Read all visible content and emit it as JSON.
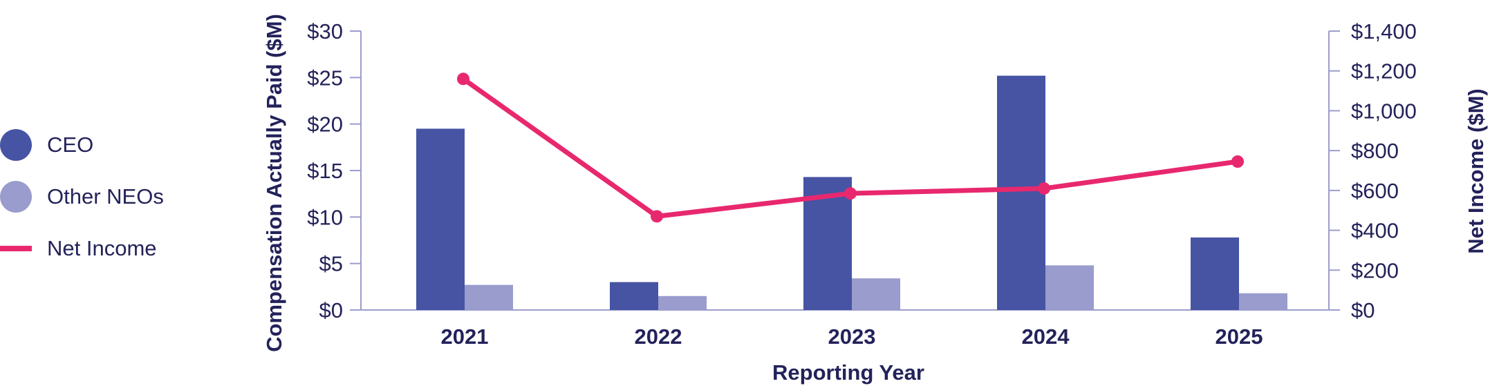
{
  "colors": {
    "ceo": "#4654a3",
    "other_neos": "#999ccc",
    "net_income": "#e8286e",
    "axis": "#9c9ccc",
    "text": "#23225a"
  },
  "legend": {
    "items": [
      {
        "label": "CEO",
        "key": "ceo",
        "shape": "circle"
      },
      {
        "label": "Other NEOs",
        "key": "other_neos",
        "shape": "circle"
      },
      {
        "label": "Net Income",
        "key": "net_income",
        "shape": "line"
      }
    ]
  },
  "chart_data": {
    "type": "bar",
    "categories": [
      "2021",
      "2022",
      "2023",
      "2024",
      "2025"
    ],
    "xlabel": "Reporting Year",
    "ylabel": "Compensation Actually Paid ($M)",
    "y2label": "Net Income ($M)",
    "ylim": [
      0,
      30
    ],
    "y2lim": [
      0,
      1400
    ],
    "yticks": [
      "$0",
      "$5",
      "$10",
      "$15",
      "$20",
      "$25",
      "$30"
    ],
    "y2ticks": [
      "$0",
      "$200",
      "$400",
      "$600",
      "$800",
      "$1,000",
      "$1,200",
      "$1,400"
    ],
    "series": [
      {
        "name": "CEO",
        "type": "bar",
        "axis": "left",
        "values": [
          19.5,
          3.0,
          14.3,
          25.2,
          7.8
        ]
      },
      {
        "name": "Other NEOs",
        "type": "bar",
        "axis": "left",
        "values": [
          2.7,
          1.5,
          3.4,
          4.8,
          1.8
        ]
      },
      {
        "name": "Net Income",
        "type": "line",
        "axis": "right",
        "values": [
          1160,
          470,
          585,
          610,
          745
        ]
      }
    ],
    "grid": false,
    "legend_position": "left"
  }
}
